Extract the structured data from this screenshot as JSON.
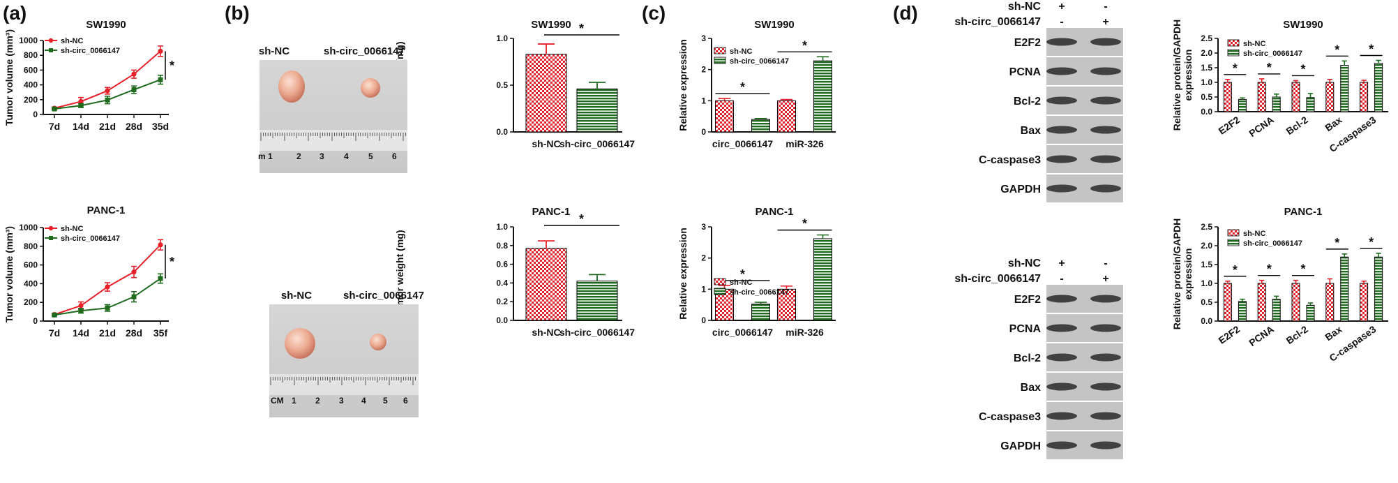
{
  "panels": {
    "a": "(a)",
    "b": "(b)",
    "c": "(c)",
    "d": "(d)"
  },
  "colors": {
    "red": "#e8202a",
    "green": "#1e6b1e",
    "axis": "#111111"
  },
  "legend": {
    "nc": "sh-NC",
    "circ": "sh-circ_0066147"
  },
  "sig": "*",
  "photo": {
    "top": {
      "label_nc": "sh-NC",
      "label_circ": "sh-circ_0066147",
      "ruler_numbers": [
        "m 1",
        "2",
        "3",
        "4",
        "5",
        "6"
      ]
    },
    "bottom": {
      "label_nc": "sh-NC",
      "label_circ": "sh-circ_0066147",
      "ruler_numbers": [
        "CM",
        "1",
        "2",
        "3",
        "4",
        "5",
        "6"
      ]
    }
  },
  "blot": {
    "top": {
      "header_rows": [
        {
          "label": "sh-NC",
          "lanes": [
            "+",
            "-"
          ]
        },
        {
          "label": "sh-circ_0066147",
          "lanes": [
            "-",
            "+"
          ]
        }
      ],
      "bands": [
        "E2F2",
        "PCNA",
        "Bcl-2",
        "Bax",
        "C-caspase3",
        "GAPDH"
      ]
    },
    "bottom": {
      "header_rows": [
        {
          "label": "sh-NC",
          "lanes": [
            "+",
            "-"
          ]
        },
        {
          "label": "sh-circ_0066147",
          "lanes": [
            "-",
            "+"
          ]
        }
      ],
      "bands": [
        "E2F2",
        "PCNA",
        "Bcl-2",
        "Bax",
        "C-caspase3",
        "GAPDH"
      ]
    }
  },
  "chart_data": [
    {
      "id": "a1",
      "type": "line",
      "title": "SW1990",
      "ylabel": "Tumor volume (mm³)",
      "categories": [
        "7d",
        "14d",
        "21d",
        "28d",
        "35d"
      ],
      "ylim": [
        0,
        1000
      ],
      "yticks": [
        0,
        200,
        400,
        600,
        800,
        1000
      ],
      "series": [
        {
          "name": "sh-NC",
          "values": [
            85,
            175,
            320,
            545,
            855
          ],
          "errors": [
            15,
            55,
            45,
            55,
            70
          ]
        },
        {
          "name": "sh-circ_0066147",
          "values": [
            75,
            120,
            195,
            335,
            470
          ],
          "errors": [
            10,
            25,
            50,
            50,
            60
          ]
        }
      ],
      "sig": "*"
    },
    {
      "id": "a2",
      "type": "line",
      "title": "PANC-1",
      "ylabel": "Tumor volume (mm³)",
      "categories": [
        "7d",
        "14d",
        "21d",
        "28d",
        "35f"
      ],
      "ylim": [
        0,
        1000
      ],
      "yticks": [
        0,
        200,
        400,
        600,
        800,
        1000
      ],
      "series": [
        {
          "name": "sh-NC",
          "values": [
            70,
            165,
            365,
            525,
            815
          ],
          "errors": [
            10,
            40,
            45,
            60,
            55
          ]
        },
        {
          "name": "sh-circ_0066147",
          "values": [
            65,
            110,
            140,
            260,
            455
          ],
          "errors": [
            10,
            25,
            35,
            55,
            50
          ]
        }
      ],
      "sig": "*"
    },
    {
      "id": "b1",
      "type": "bar",
      "title": "SW1990",
      "ylabel": "Tumor weight (mg)",
      "categories": [
        "sh-NC",
        "sh-circ_0066147"
      ],
      "values": [
        0.83,
        0.46
      ],
      "errors": [
        0.11,
        0.07
      ],
      "ylim": [
        0,
        1.0
      ],
      "yticks": [
        0.0,
        0.5,
        1.0
      ],
      "sig": "*"
    },
    {
      "id": "b2",
      "type": "bar",
      "title": "PANC-1",
      "ylabel": "Tumor weight (mg)",
      "categories": [
        "sh-NC",
        "sh-circ_0066147"
      ],
      "values": [
        0.77,
        0.42
      ],
      "errors": [
        0.08,
        0.07
      ],
      "ylim": [
        0,
        1.0
      ],
      "yticks": [
        0.0,
        0.2,
        0.4,
        0.6,
        0.8,
        1.0
      ],
      "sig": "*"
    },
    {
      "id": "c1",
      "type": "bar",
      "title": "SW1990",
      "ylabel": "Relative expression",
      "categories": [
        "circ_0066147",
        "miR-326"
      ],
      "ylim": [
        0,
        3
      ],
      "yticks": [
        0,
        1,
        2,
        3
      ],
      "series": [
        {
          "name": "sh-NC",
          "values": [
            1.0,
            1.0
          ],
          "errors": [
            0.07,
            0.04
          ]
        },
        {
          "name": "sh-circ_0066147",
          "values": [
            0.4,
            2.28
          ],
          "errors": [
            0.03,
            0.13
          ]
        }
      ],
      "sig": [
        "*",
        "*"
      ]
    },
    {
      "id": "c2",
      "type": "bar",
      "title": "PANC-1",
      "ylabel": "Relative expression",
      "categories": [
        "circ_0066147",
        "miR-326"
      ],
      "ylim": [
        0,
        3
      ],
      "yticks": [
        0,
        1,
        2,
        3
      ],
      "series": [
        {
          "name": "sh-NC",
          "values": [
            1.0,
            1.0
          ],
          "errors": [
            0.12,
            0.1
          ]
        },
        {
          "name": "sh-circ_0066147",
          "values": [
            0.52,
            2.62
          ],
          "errors": [
            0.06,
            0.12
          ]
        }
      ],
      "sig": [
        "*",
        "*"
      ]
    },
    {
      "id": "d1",
      "type": "bar",
      "title": "SW1990",
      "ylabel": [
        "Relative protein/GAPDH",
        "expression"
      ],
      "categories": [
        "E2F2",
        "PCNA",
        "Bcl-2",
        "Bax",
        "C-caspase3"
      ],
      "ylim": [
        0,
        2.5
      ],
      "yticks": [
        0.0,
        0.5,
        1.0,
        1.5,
        2.0,
        2.5
      ],
      "series": [
        {
          "name": "sh-NC",
          "values": [
            1.0,
            1.0,
            1.0,
            1.0,
            1.0
          ],
          "errors": [
            0.1,
            0.12,
            0.06,
            0.1,
            0.07
          ]
        },
        {
          "name": "sh-circ_0066147",
          "values": [
            0.42,
            0.5,
            0.48,
            1.58,
            1.65
          ],
          "errors": [
            0.05,
            0.1,
            0.14,
            0.15,
            0.1
          ]
        }
      ],
      "sig": [
        "*",
        "*",
        "*",
        "*",
        "*"
      ]
    },
    {
      "id": "d2",
      "type": "bar",
      "title": "PANC-1",
      "ylabel": [
        "Relative protein/GAPDH",
        "expression"
      ],
      "categories": [
        "E2F2",
        "PCNA",
        "Bcl-2",
        "Bax",
        "C-caspase3"
      ],
      "ylim": [
        0,
        2.5
      ],
      "yticks": [
        0.0,
        0.5,
        1.0,
        1.5,
        2.0,
        2.5
      ],
      "series": [
        {
          "name": "sh-NC",
          "values": [
            1.0,
            1.0,
            1.0,
            1.0,
            1.0
          ],
          "errors": [
            0.06,
            0.08,
            0.08,
            0.12,
            0.06
          ]
        },
        {
          "name": "sh-circ_0066147",
          "values": [
            0.52,
            0.58,
            0.42,
            1.7,
            1.7
          ],
          "errors": [
            0.06,
            0.08,
            0.06,
            0.08,
            0.1
          ]
        }
      ],
      "sig": [
        "*",
        "*",
        "*",
        "*",
        "*"
      ]
    }
  ]
}
